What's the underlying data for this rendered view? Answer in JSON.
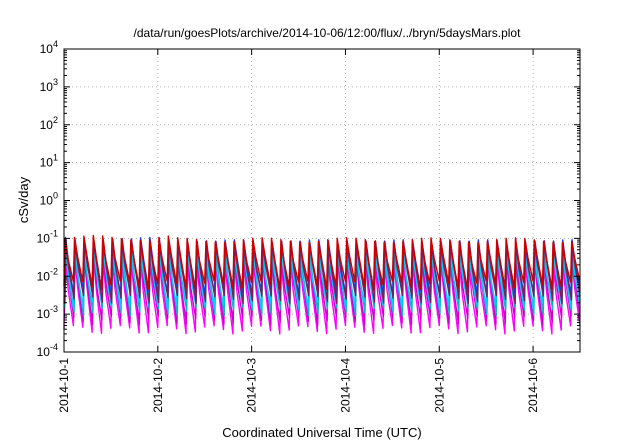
{
  "chart_data": {
    "type": "line",
    "title": "/data/run/goesPlots/archive/2014-10-06/12:00/flux/../bryn/5daysMars.plot",
    "xlabel": "Coordinated Universal Time (UTC)",
    "ylabel": "cSv/day",
    "yscale": "log",
    "ylim": [
      0.0001,
      10000
    ],
    "xlim_days": [
      0,
      5.5
    ],
    "x_start": "2014-10-01",
    "x_ticks": [
      {
        "label": "2014-10-1",
        "day": 0
      },
      {
        "label": "2014-10-2",
        "day": 1
      },
      {
        "label": "2014-10-3",
        "day": 2
      },
      {
        "label": "2014-10-4",
        "day": 3
      },
      {
        "label": "2014-10-5",
        "day": 4
      },
      {
        "label": "2014-10-6",
        "day": 5
      }
    ],
    "y_ticks": [
      {
        "base": "10",
        "exp": "-4",
        "value": 0.0001
      },
      {
        "base": "10",
        "exp": "-3",
        "value": 0.001
      },
      {
        "base": "10",
        "exp": "-2",
        "value": 0.01
      },
      {
        "base": "10",
        "exp": "-1",
        "value": 0.1
      },
      {
        "base": "10",
        "exp": "0",
        "value": 1
      },
      {
        "base": "10",
        "exp": "1",
        "value": 10
      },
      {
        "base": "10",
        "exp": "2",
        "value": 100
      },
      {
        "base": "10",
        "exp": "3",
        "value": 1000
      },
      {
        "base": "10",
        "exp": "4",
        "value": 10000
      }
    ],
    "grid": true,
    "legend": "none",
    "cycles_per_day": 10,
    "series": [
      {
        "color": "#ff00ff",
        "peak": 0.03,
        "trough": 0.0004
      },
      {
        "color": "#cc00cc",
        "peak": 0.04,
        "trough": 0.0007
      },
      {
        "color": "#00bbbb",
        "peak": 0.05,
        "trough": 0.0012
      },
      {
        "color": "#00ccff",
        "peak": 0.045,
        "trough": 0.0018
      },
      {
        "color": "#1a3cff",
        "peak": 0.08,
        "trough": 0.004
      },
      {
        "color": "#7a1f5a",
        "peak": 0.075,
        "trough": 0.0025
      },
      {
        "color": "#cc0000",
        "peak": 0.09,
        "trough": 0.006
      }
    ]
  }
}
